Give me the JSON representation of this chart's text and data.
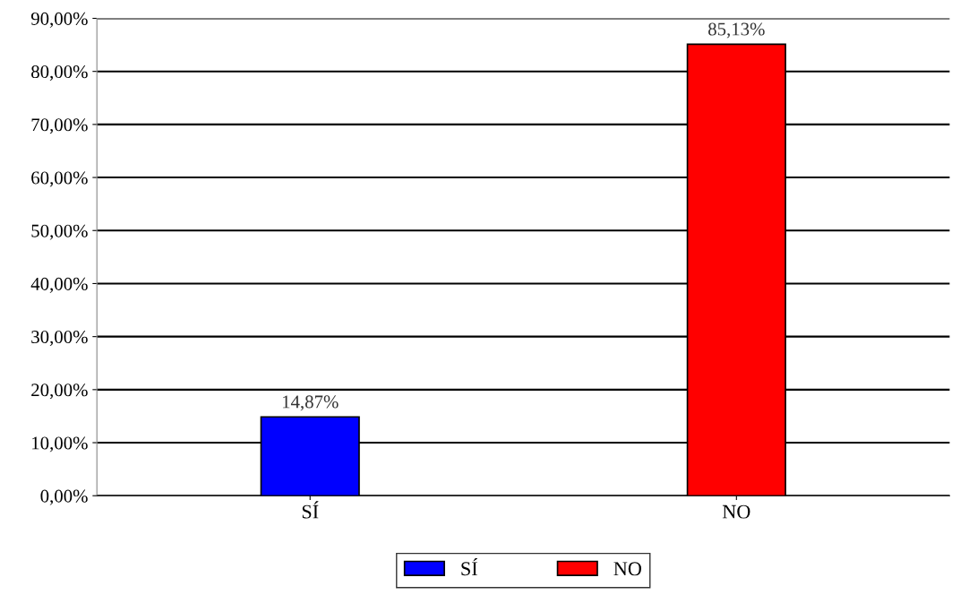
{
  "chart_data": {
    "type": "bar",
    "categories": [
      "SÍ",
      "NO"
    ],
    "series": [
      {
        "name": "SÍ",
        "color": "#0000ff",
        "values": [
          14.87,
          null
        ],
        "value_labels": [
          "14,87%",
          null
        ]
      },
      {
        "name": "NO",
        "color": "#ff0000",
        "values": [
          null,
          85.13
        ],
        "value_labels": [
          null,
          "85,13%"
        ]
      }
    ],
    "ylim": [
      0,
      90
    ],
    "yticks": [
      {
        "value": 0,
        "label": "0,00%"
      },
      {
        "value": 10,
        "label": "10,00%"
      },
      {
        "value": 20,
        "label": "20,00%"
      },
      {
        "value": 30,
        "label": "30,00%"
      },
      {
        "value": 40,
        "label": "40,00%"
      },
      {
        "value": 50,
        "label": "50,00%"
      },
      {
        "value": 60,
        "label": "60,00%"
      },
      {
        "value": 70,
        "label": "70,00%"
      },
      {
        "value": 80,
        "label": "80,00%"
      },
      {
        "value": 90,
        "label": "90,00%"
      }
    ],
    "grid": "y",
    "legend": "bottom"
  }
}
